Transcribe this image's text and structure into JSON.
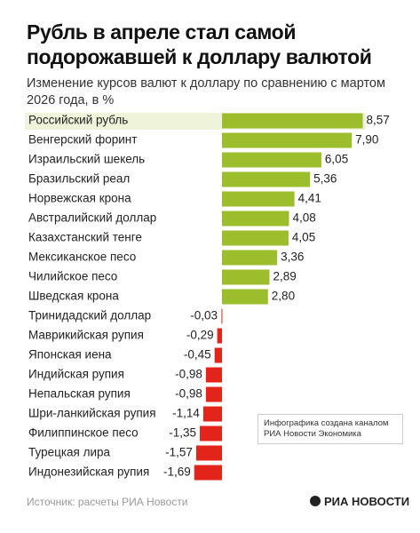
{
  "chart_data": {
    "type": "bar",
    "orientation": "horizontal",
    "title": "Рубль в апреле стал самой подорожавшей к доллару валютой",
    "subtitle": "Изменение курсов валют к доллару по сравнению с мартом 2026 года, в %",
    "categories": [
      "Российский рубль",
      "Венгерский форинт",
      "Израильский шекель",
      "Бразильский реал",
      "Норвежская крона",
      "Австралийский доллар",
      "Казахстанский тенге",
      "Мексиканское песо",
      "Чилийское песо",
      "Шведская крона",
      "Тринидадский доллар",
      "Маврикийская рупия",
      "Японская иена",
      "Индийская рупия",
      "Непальская рупия",
      "Шри-ланкийская рупия",
      "Филиппинское песо",
      "Турецкая лира",
      "Индонезийская рупия"
    ],
    "values": [
      8.57,
      7.9,
      6.05,
      5.36,
      4.41,
      4.08,
      4.05,
      3.36,
      2.89,
      2.8,
      -0.03,
      -0.29,
      -0.45,
      -0.98,
      -0.98,
      -1.14,
      -1.35,
      -1.57,
      -1.69
    ],
    "value_labels": [
      "8,57",
      "7,90",
      "6,05",
      "5,36",
      "4,41",
      "4,08",
      "4,05",
      "3,36",
      "2,89",
      "2,80",
      "-0,03",
      "-0,29",
      "-0,45",
      "-0,98",
      "-0,98",
      "-1,14",
      "-1,35",
      "-1,57",
      "-1,69"
    ],
    "positive_color": "#9cbd2c",
    "negative_color": "#e3241b",
    "annotation": "Инфографика создана каналом РИА Новости Экономика",
    "source": "Источник: расчеты РИА Новости",
    "logo": "РИА НОВОСТИ"
  }
}
